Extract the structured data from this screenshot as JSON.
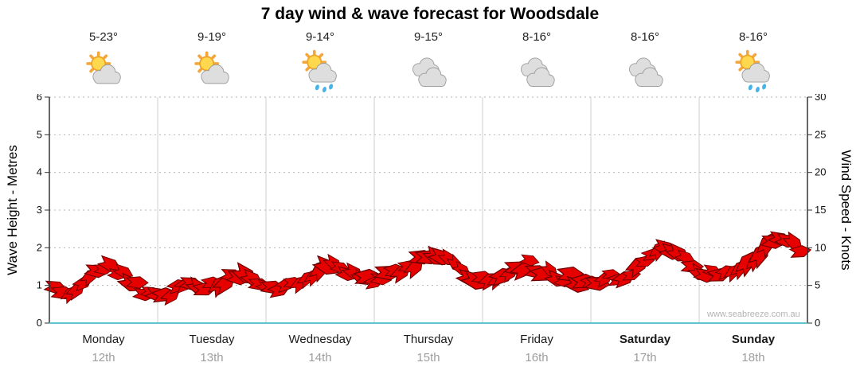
{
  "title": "7 day wind & wave forecast for Woodsdale",
  "watermark": "www.seabreeze.com.au",
  "days": [
    {
      "temp": "5-23°",
      "icon": "sun-cloud",
      "name": "Monday",
      "date": "12th",
      "bold": false
    },
    {
      "temp": "9-19°",
      "icon": "sun-cloud",
      "name": "Tuesday",
      "date": "13th",
      "bold": false
    },
    {
      "temp": "9-14°",
      "icon": "sun-cloud-rain",
      "name": "Wednesday",
      "date": "14th",
      "bold": false
    },
    {
      "temp": "9-15°",
      "icon": "cloudy",
      "name": "Thursday",
      "date": "15th",
      "bold": false
    },
    {
      "temp": "8-16°",
      "icon": "cloudy",
      "name": "Friday",
      "date": "16th",
      "bold": false
    },
    {
      "temp": "8-16°",
      "icon": "cloudy",
      "name": "Saturday",
      "date": "17th",
      "bold": true
    },
    {
      "temp": "8-16°",
      "icon": "sun-cloud-rain",
      "name": "Sunday",
      "date": "18th",
      "bold": true
    }
  ],
  "axes": {
    "left_label": "Wave Height - Metres",
    "right_label": "Wind Speed - Knots",
    "left_ticks": [
      "0",
      "1",
      "2",
      "3",
      "4",
      "5",
      "6"
    ],
    "right_ticks": [
      "0",
      "5",
      "10",
      "15",
      "20",
      "25",
      "30"
    ]
  },
  "colors": {
    "arrow_fill": "#E60000",
    "arrow_stroke": "#6B0000",
    "bottom_axis": "#62C4CE",
    "grid": "#B5B5B5",
    "day_divider": "#CFCFCF"
  },
  "chart_data": {
    "type": "line",
    "title": "7 day wind & wave forecast for Woodsdale",
    "ylabel_left": "Wave Height - Metres",
    "ylabel_right": "Wind Speed - Knots",
    "ylim_left": [
      0,
      6
    ],
    "ylim_right": [
      0,
      30
    ],
    "grid": "horizontal dashed, vertical day dividers",
    "legend": "none",
    "marker": "red wind arrows band (read on right axis, knots)",
    "x_categories": [
      "Monday 12th",
      "Tuesday 13th",
      "Wednesday 14th",
      "Thursday 15th",
      "Friday 16th",
      "Saturday 17th",
      "Sunday 18th"
    ],
    "points_per_day": 8,
    "series": [
      {
        "name": "Wind Speed (knots)",
        "axis": "right",
        "values": [
          5,
          4.5,
          5.5,
          7,
          7.5,
          6.5,
          5,
          4,
          4,
          4.5,
          5,
          4.5,
          5.5,
          6.5,
          6,
          5,
          4.5,
          5,
          5.5,
          6.5,
          7.5,
          7,
          6,
          5.5,
          6,
          6.5,
          7.5,
          8.5,
          8.5,
          8,
          7,
          6,
          5.5,
          6.5,
          7.5,
          8,
          7,
          6.5,
          6,
          5.5,
          5.5,
          6,
          6.5,
          7.5,
          8.5,
          9.5,
          9,
          7,
          6.5,
          6,
          6.5,
          8,
          9.5,
          11,
          10.5,
          9.5
        ]
      }
    ]
  }
}
